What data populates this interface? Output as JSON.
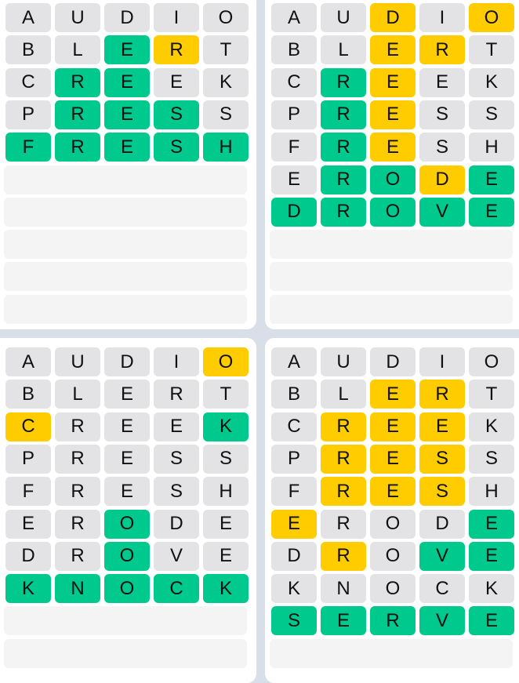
{
  "colors": {
    "correct": "#00c98d",
    "present": "#ffcc00",
    "absent": "#e3e3e6",
    "empty": "#f4f4f5"
  },
  "boards": [
    {
      "solved_word": "FRESH",
      "total_rows": 10,
      "rows": [
        {
          "letters": [
            "A",
            "U",
            "D",
            "I",
            "O"
          ],
          "states": "xxxxx"
        },
        {
          "letters": [
            "B",
            "L",
            "E",
            "R",
            "T"
          ],
          "states": "xxgyx"
        },
        {
          "letters": [
            "C",
            "R",
            "E",
            "E",
            "K"
          ],
          "states": "xggxx"
        },
        {
          "letters": [
            "P",
            "R",
            "E",
            "S",
            "S"
          ],
          "states": "xgggx"
        },
        {
          "letters": [
            "F",
            "R",
            "E",
            "S",
            "H"
          ],
          "states": "ggggg"
        }
      ]
    },
    {
      "solved_word": "DROVE",
      "total_rows": 10,
      "rows": [
        {
          "letters": [
            "A",
            "U",
            "D",
            "I",
            "O"
          ],
          "states": "xxyxy"
        },
        {
          "letters": [
            "B",
            "L",
            "E",
            "R",
            "T"
          ],
          "states": "xxyyx"
        },
        {
          "letters": [
            "C",
            "R",
            "E",
            "E",
            "K"
          ],
          "states": "xgyxx"
        },
        {
          "letters": [
            "P",
            "R",
            "E",
            "S",
            "S"
          ],
          "states": "xgyxx"
        },
        {
          "letters": [
            "F",
            "R",
            "E",
            "S",
            "H"
          ],
          "states": "xgyxx"
        },
        {
          "letters": [
            "E",
            "R",
            "O",
            "D",
            "E"
          ],
          "states": "xggyg"
        },
        {
          "letters": [
            "D",
            "R",
            "O",
            "V",
            "E"
          ],
          "states": "ggggg"
        }
      ]
    },
    {
      "solved_word": "KNOCK",
      "total_rows": 10,
      "rows": [
        {
          "letters": [
            "A",
            "U",
            "D",
            "I",
            "O"
          ],
          "states": "xxxxy"
        },
        {
          "letters": [
            "B",
            "L",
            "E",
            "R",
            "T"
          ],
          "states": "xxxxx"
        },
        {
          "letters": [
            "C",
            "R",
            "E",
            "E",
            "K"
          ],
          "states": "yxxxg"
        },
        {
          "letters": [
            "P",
            "R",
            "E",
            "S",
            "S"
          ],
          "states": "xxxxx"
        },
        {
          "letters": [
            "F",
            "R",
            "E",
            "S",
            "H"
          ],
          "states": "xxxxx"
        },
        {
          "letters": [
            "E",
            "R",
            "O",
            "D",
            "E"
          ],
          "states": "xxgxx"
        },
        {
          "letters": [
            "D",
            "R",
            "O",
            "V",
            "E"
          ],
          "states": "xxgxx"
        },
        {
          "letters": [
            "K",
            "N",
            "O",
            "C",
            "K"
          ],
          "states": "ggggg"
        }
      ]
    },
    {
      "solved_word": "SERVE",
      "total_rows": 10,
      "rows": [
        {
          "letters": [
            "A",
            "U",
            "D",
            "I",
            "O"
          ],
          "states": "xxxxx"
        },
        {
          "letters": [
            "B",
            "L",
            "E",
            "R",
            "T"
          ],
          "states": "xxyyx"
        },
        {
          "letters": [
            "C",
            "R",
            "E",
            "E",
            "K"
          ],
          "states": "xyyyx"
        },
        {
          "letters": [
            "P",
            "R",
            "E",
            "S",
            "S"
          ],
          "states": "xyyyx"
        },
        {
          "letters": [
            "F",
            "R",
            "E",
            "S",
            "H"
          ],
          "states": "xyyyx"
        },
        {
          "letters": [
            "E",
            "R",
            "O",
            "D",
            "E"
          ],
          "states": "yxxxg"
        },
        {
          "letters": [
            "D",
            "R",
            "O",
            "V",
            "E"
          ],
          "states": "xyxgg"
        },
        {
          "letters": [
            "K",
            "N",
            "O",
            "C",
            "K"
          ],
          "states": "xxxxx"
        },
        {
          "letters": [
            "S",
            "E",
            "R",
            "V",
            "E"
          ],
          "states": "ggggg"
        }
      ]
    }
  ]
}
